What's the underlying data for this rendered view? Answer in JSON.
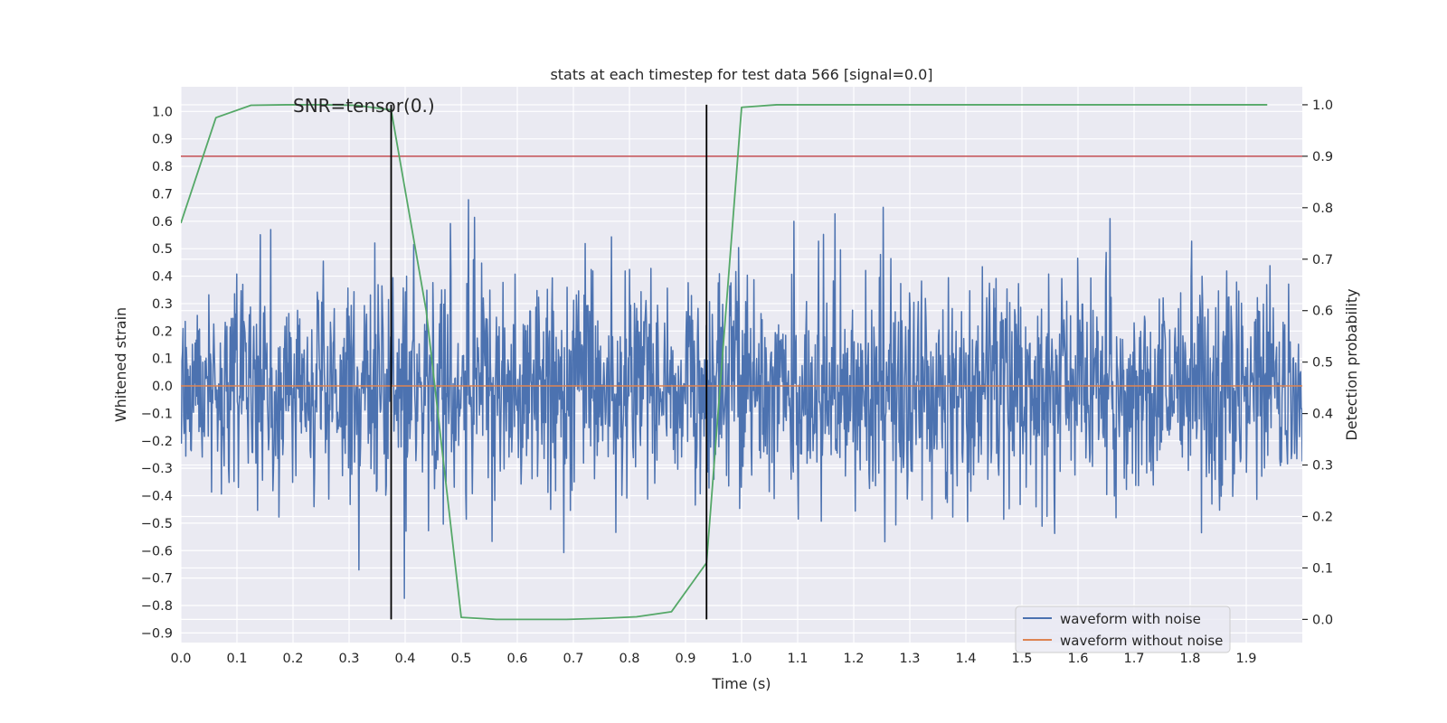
{
  "chart_data": {
    "type": "line",
    "title": "stats at each timestep for test data 566 [signal=0.0]",
    "annotation": "SNR=tensor(0.)",
    "xlabel": "Time (s)",
    "ylabel": "Whitened strain",
    "y2label": "Detection probability",
    "xlim": [
      0.0,
      2.0
    ],
    "ylim": [
      -0.935,
      1.09
    ],
    "y2lim": [
      -0.045,
      1.035
    ],
    "x_ticks": [
      0.0,
      0.1,
      0.2,
      0.3,
      0.4,
      0.5,
      0.6,
      0.7,
      0.8,
      0.9,
      1.0,
      1.1,
      1.2,
      1.3,
      1.4,
      1.5,
      1.6,
      1.7,
      1.8,
      1.9
    ],
    "x_tick_labels": [
      "0.0",
      "0.1",
      "0.2",
      "0.3",
      "0.4",
      "0.5",
      "0.6",
      "0.7",
      "0.8",
      "0.9",
      "1.0",
      "1.1",
      "1.2",
      "1.3",
      "1.4",
      "1.5",
      "1.6",
      "1.7",
      "1.8",
      "1.9"
    ],
    "y_ticks": [
      1.0,
      0.9,
      0.8,
      0.7,
      0.6,
      0.5,
      0.4,
      0.3,
      0.2,
      0.1,
      0.0,
      -0.1,
      -0.2,
      -0.3,
      -0.4,
      -0.5,
      -0.6,
      -0.7,
      -0.8,
      -0.9
    ],
    "y_tick_labels": [
      "1.0",
      "0.9",
      "0.8",
      "0.7",
      "0.6",
      "0.5",
      "0.4",
      "0.3",
      "0.2",
      "0.1",
      "0.0",
      "−0.1",
      "−0.2",
      "−0.3",
      "−0.4",
      "−0.5",
      "−0.6",
      "−0.7",
      "−0.8",
      "−0.9"
    ],
    "y2_ticks": [
      1.0,
      0.9,
      0.8,
      0.7,
      0.6,
      0.5,
      0.4,
      0.3,
      0.2,
      0.1,
      0.0
    ],
    "y2_tick_labels": [
      "1.0",
      "0.9",
      "0.8",
      "0.7",
      "0.6",
      "0.5",
      "0.4",
      "0.3",
      "0.2",
      "0.1",
      "0.0"
    ],
    "series": [
      {
        "name": "waveform with noise",
        "color": "#4c72b0",
        "kind": "noise",
        "x_range": [
          0.0,
          2.0
        ],
        "n_points": 2048,
        "seed": 566,
        "std": 0.2,
        "visible_min": -0.8,
        "visible_max": 1.0
      },
      {
        "name": "waveform without noise",
        "color": "#dd8452",
        "x": [
          0.0,
          2.0
        ],
        "y": [
          0.0,
          0.0
        ]
      },
      {
        "name": "detection probability",
        "color": "#55a868",
        "axis": "right",
        "x": [
          0.0,
          0.0625,
          0.125,
          0.1875,
          0.25,
          0.3125,
          0.375,
          0.4375,
          0.5,
          0.5625,
          0.625,
          0.6875,
          0.75,
          0.8125,
          0.875,
          0.9375,
          1.0,
          1.0625,
          1.125,
          1.1875,
          1.25,
          1.3125,
          1.375,
          1.4375,
          1.5,
          1.5625,
          1.625,
          1.6875,
          1.75,
          1.8125,
          1.875,
          1.9375
        ],
        "y": [
          0.77,
          0.975,
          0.999,
          1.0,
          1.0,
          0.999,
          0.99,
          0.6,
          0.004,
          0.0,
          0.0,
          0.0,
          0.002,
          0.005,
          0.015,
          0.11,
          0.995,
          1.0,
          1.0,
          1.0,
          1.0,
          1.0,
          1.0,
          1.0,
          1.0,
          1.0,
          1.0,
          1.0,
          1.0,
          1.0,
          1.0,
          1.0
        ]
      }
    ],
    "threshold": {
      "axis": "right",
      "value": 0.9,
      "color": "#c44e52"
    },
    "vlines": [
      {
        "x": 0.375,
        "y2_from": 0.0,
        "y2_to": 1.0,
        "color": "#000000"
      },
      {
        "x": 0.9375,
        "y2_from": 0.0,
        "y2_to": 1.0,
        "color": "#000000"
      }
    ],
    "legend": {
      "position": "lower-right",
      "entries": [
        "waveform with noise",
        "waveform without noise"
      ]
    },
    "background_color": "#eaeaf2",
    "grid": true
  }
}
